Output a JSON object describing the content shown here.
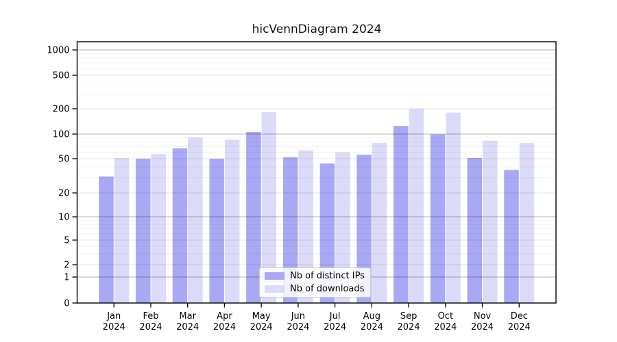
{
  "title": "hicVennDiagram 2024",
  "chart_data": {
    "type": "bar",
    "title": "hicVennDiagram 2024",
    "categories": [
      "Jan",
      "Feb",
      "Mar",
      "Apr",
      "May",
      "Jun",
      "Jul",
      "Aug",
      "Sep",
      "Oct",
      "Nov",
      "Dec"
    ],
    "category_year": "2024",
    "series": [
      {
        "name": "Nb of distinct IPs",
        "color": "#a9a8f5",
        "values": [
          31,
          50,
          67,
          50,
          106,
          52,
          44,
          56,
          125,
          99,
          51,
          37
        ]
      },
      {
        "name": "Nb of downloads",
        "color": "#dbdbf9",
        "values": [
          51,
          57,
          91,
          86,
          182,
          63,
          60,
          78,
          200,
          180,
          83,
          78
        ]
      }
    ],
    "yticks": [
      0,
      1,
      2,
      5,
      10,
      20,
      50,
      100,
      200,
      500,
      1000
    ],
    "ylim": [
      0,
      1000
    ],
    "yscale": "symlog",
    "xlabel": "",
    "ylabel": "",
    "grid": true,
    "legend_position": "lower center"
  },
  "colors": {
    "spine": "#000000",
    "background": "#ffffff"
  }
}
